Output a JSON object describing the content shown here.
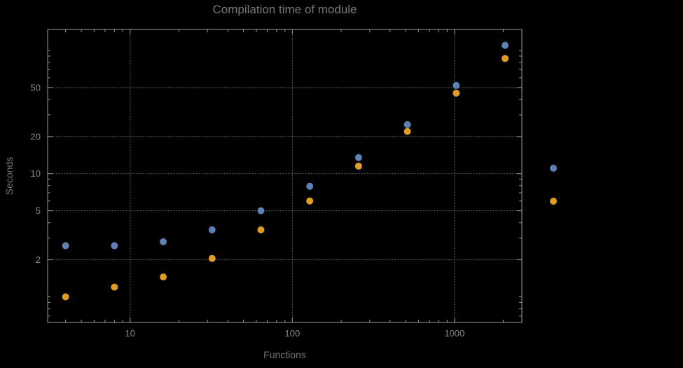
{
  "page": {
    "background": "#000000"
  },
  "chart_data": {
    "type": "scatter",
    "title": "Compilation time of module",
    "xlabel": "Functions",
    "ylabel": "Seconds",
    "x_scale": "log",
    "y_scale": "log",
    "xlim": [
      3.1,
      2600
    ],
    "ylim": [
      0.62,
      148
    ],
    "grid": "dotted lines at labeled ticks",
    "legend_position": "right-outside",
    "x_ticks": [
      10,
      100,
      1000
    ],
    "x_tick_labels": [
      "10",
      "100",
      "1000"
    ],
    "y_ticks": [
      2,
      5,
      10,
      20,
      50
    ],
    "y_tick_labels": [
      "2",
      "5",
      "10",
      "20",
      "50"
    ],
    "x": [
      4,
      8,
      16,
      32,
      64,
      128,
      256,
      512,
      1024,
      2048
    ],
    "series": [
      {
        "name": "blue",
        "color": "#5e81b5",
        "values": [
          2.6,
          2.6,
          2.8,
          3.5,
          5.0,
          7.9,
          13.5,
          25,
          52,
          110
        ]
      },
      {
        "name": "orange",
        "color": "#e19c24",
        "values": [
          1.0,
          1.2,
          1.45,
          2.05,
          3.5,
          6.0,
          11.5,
          22,
          45,
          86
        ]
      }
    ]
  }
}
